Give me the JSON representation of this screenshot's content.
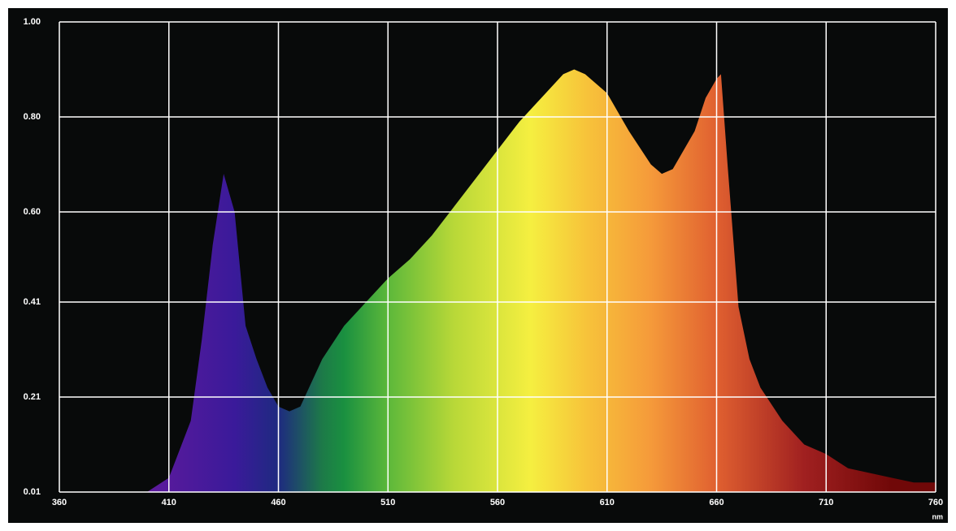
{
  "chart_data": {
    "type": "area",
    "x_label": "nm",
    "x": [
      400,
      410,
      420,
      425,
      430,
      435,
      440,
      445,
      450,
      455,
      460,
      465,
      470,
      475,
      480,
      490,
      500,
      510,
      520,
      530,
      540,
      550,
      560,
      570,
      580,
      590,
      595,
      600,
      610,
      620,
      630,
      635,
      640,
      650,
      655,
      660,
      662,
      665,
      670,
      675,
      680,
      690,
      700,
      710,
      720,
      730,
      740,
      750,
      760
    ],
    "values": [
      0.01,
      0.04,
      0.16,
      0.33,
      0.53,
      0.68,
      0.6,
      0.36,
      0.29,
      0.23,
      0.19,
      0.18,
      0.19,
      0.24,
      0.29,
      0.36,
      0.41,
      0.46,
      0.5,
      0.55,
      0.61,
      0.67,
      0.73,
      0.79,
      0.84,
      0.89,
      0.9,
      0.89,
      0.85,
      0.77,
      0.7,
      0.68,
      0.69,
      0.77,
      0.84,
      0.88,
      0.89,
      0.7,
      0.4,
      0.29,
      0.23,
      0.16,
      0.11,
      0.09,
      0.06,
      0.05,
      0.04,
      0.03,
      0.03
    ],
    "fill_gradient": [
      {
        "x": 400,
        "color": "#5e1a9c"
      },
      {
        "x": 440,
        "color": "#3a1a9a"
      },
      {
        "x": 460,
        "color": "#1e2a80"
      },
      {
        "x": 480,
        "color": "#1d7a48"
      },
      {
        "x": 490,
        "color": "#1a9040"
      },
      {
        "x": 510,
        "color": "#5cb83a"
      },
      {
        "x": 540,
        "color": "#b8d838"
      },
      {
        "x": 575,
        "color": "#f5ef40"
      },
      {
        "x": 600,
        "color": "#f7c43a"
      },
      {
        "x": 630,
        "color": "#f59a3a"
      },
      {
        "x": 660,
        "color": "#e06030"
      },
      {
        "x": 700,
        "color": "#a02020"
      },
      {
        "x": 740,
        "color": "#700808"
      }
    ],
    "background": "#080a0a",
    "grid": true,
    "xlim": [
      360,
      760
    ],
    "xticks": [
      360,
      410,
      460,
      510,
      560,
      610,
      660,
      710,
      760
    ],
    "ylim": [
      0.01,
      1
    ],
    "yticks": [
      0.01,
      0.21,
      0.41,
      {
        "value": 0.6,
        "label": "0.60"
      },
      {
        "value": 0.8,
        "label": "0.80"
      },
      {
        "value": 1,
        "label": "1.00"
      }
    ]
  }
}
